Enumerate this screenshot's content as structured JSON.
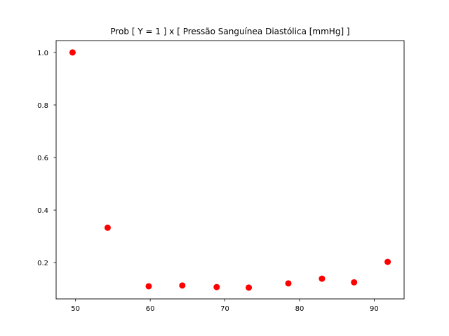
{
  "chart_data": {
    "type": "scatter",
    "title": "Prob [ Y = 1 ] x [ Pressão Sanguínea Diastólica [mmHg] ]",
    "xlabel": "",
    "ylabel": "",
    "xlim": [
      47.4,
      94.0
    ],
    "ylim": [
      0.062,
      1.045
    ],
    "xticks": [
      50,
      60,
      70,
      80,
      90
    ],
    "yticks": [
      0.2,
      0.4,
      0.6,
      0.8,
      1.0
    ],
    "xtick_labels": [
      "50",
      "60",
      "70",
      "80",
      "90"
    ],
    "ytick_labels": [
      "0.2",
      "0.4",
      "0.6",
      "0.8",
      "1.0"
    ],
    "grid": false,
    "marker_color": "#ff0000",
    "x": [
      49.6,
      54.3,
      59.8,
      64.3,
      68.9,
      73.2,
      78.5,
      83.0,
      87.3,
      91.8
    ],
    "y": [
      1.0,
      0.333,
      0.11,
      0.113,
      0.107,
      0.105,
      0.121,
      0.139,
      0.125,
      0.203
    ]
  }
}
